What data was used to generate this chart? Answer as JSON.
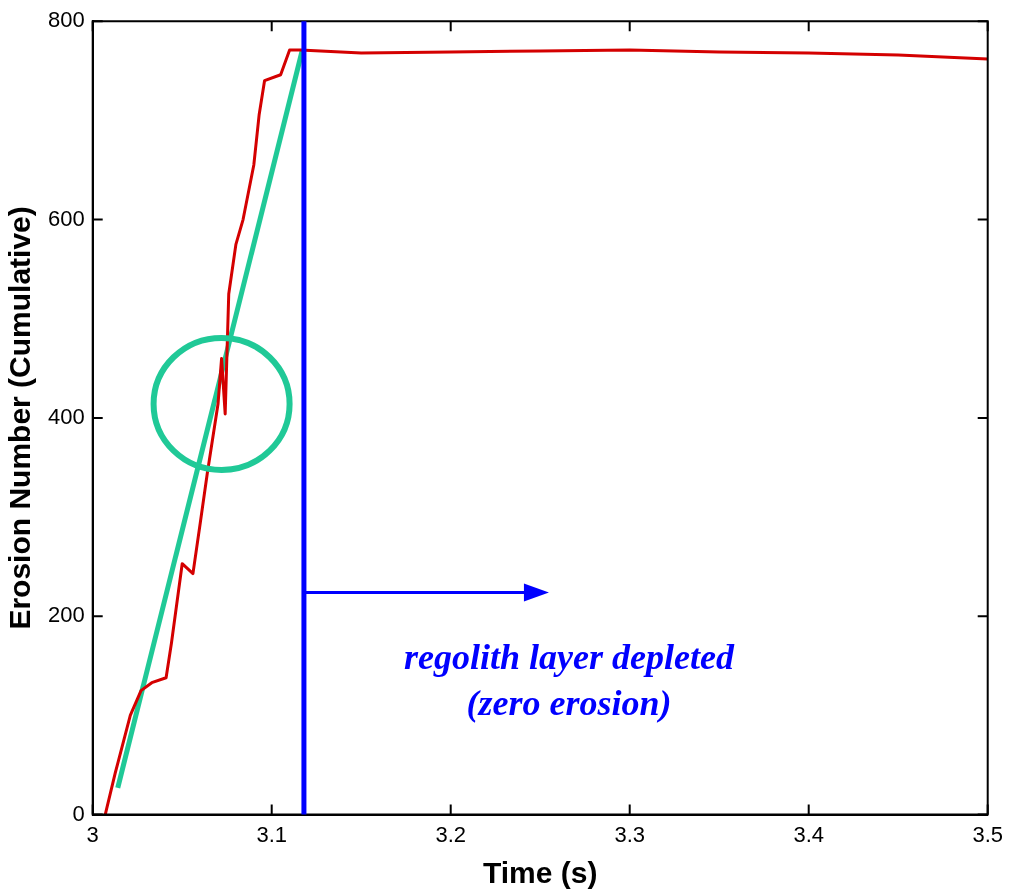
{
  "chart_data": {
    "type": "line",
    "xlabel": "Time (s)",
    "ylabel": "Erosion Number (Cumulative)",
    "xlim": [
      3,
      3.5
    ],
    "xticks": [
      3,
      3.1,
      3.2,
      3.3,
      3.4,
      3.5
    ],
    "ylim": [
      0,
      800
    ],
    "yticks": [
      0,
      200,
      400,
      600,
      800
    ],
    "grid": false,
    "legend": false,
    "marker": "none",
    "line_style": "solid",
    "series": [
      {
        "color": "#d40000",
        "x": [
          3.007,
          3.0126,
          3.021,
          3.027,
          3.033,
          3.041,
          3.044,
          3.05,
          3.056,
          3.06,
          3.064,
          3.07,
          3.072,
          3.074,
          3.076,
          3.08,
          3.084,
          3.09,
          3.093,
          3.096,
          3.105,
          3.11,
          3.116,
          3.15,
          3.2,
          3.25,
          3.3,
          3.35,
          3.4,
          3.45,
          3.5
        ],
        "values": [
          0,
          42,
          100,
          125,
          133,
          138,
          173,
          253,
          243,
          293,
          344,
          414,
          460,
          404,
          525,
          575,
          600,
          655,
          706,
          740,
          746,
          771,
          771,
          768,
          769,
          770,
          771,
          769,
          768,
          766,
          762
        ]
      },
      {
        "type": "line",
        "color": "#20c997",
        "x": [
          3.014,
          3.117
        ],
        "values": [
          27,
          770
        ]
      }
    ],
    "ref_lines": [
      {
        "axis": "x",
        "value": 3.118,
        "color": "#0000ff",
        "label": "regolith layer depleted\n(zero erosion)"
      }
    ]
  }
}
